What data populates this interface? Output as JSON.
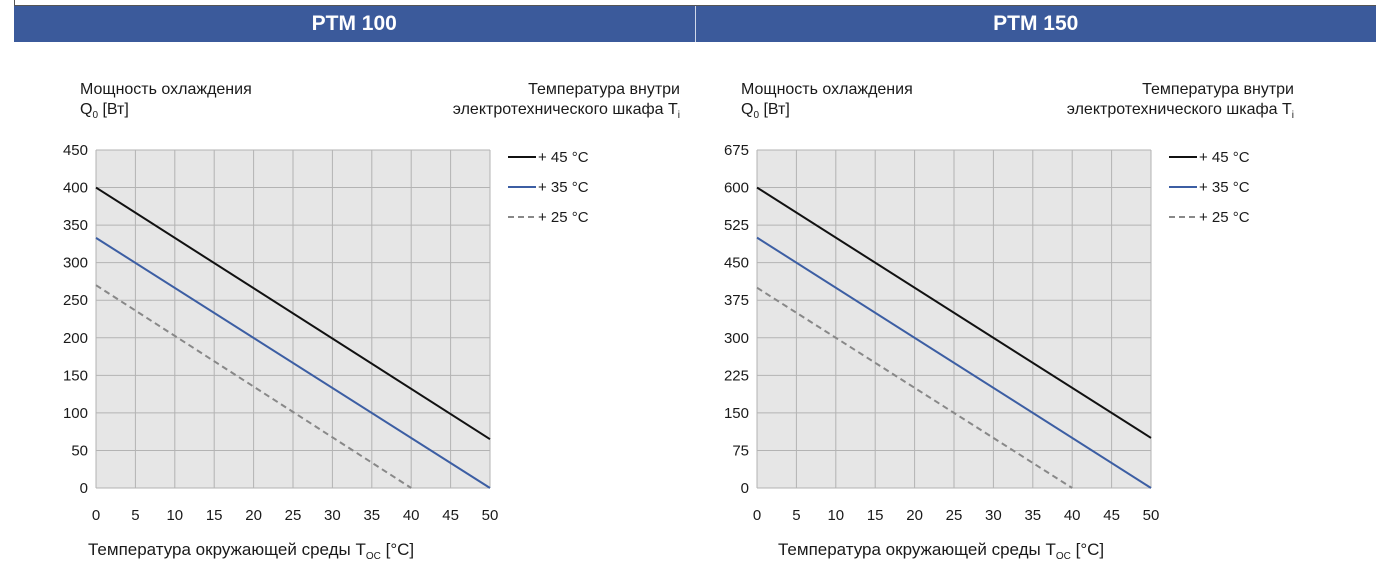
{
  "headers": [
    "PTM 100",
    "PTM 150"
  ],
  "ylabel": {
    "line1": "Мощность охлаждения",
    "q": "Q",
    "q_sub": "0",
    "unit": " [Вт]"
  },
  "tilabel": {
    "line1": "Температура внутри",
    "line2": "электротехнического шкафа T",
    "sub": "i"
  },
  "xlabel": {
    "main": "Температура окружающей среды T",
    "sub": "OC",
    "unit": " [°C]"
  },
  "colors": {
    "header": "#3b5a9b",
    "s45": "#111111",
    "s35": "#3c5ea3",
    "s25": "#888888",
    "plot_bg": "#e6e6e6",
    "grid": "#b3b3b3"
  },
  "chart_data": [
    {
      "type": "line",
      "title": "PTM 100",
      "xlabel": "Температура окружающей среды TOC [°C]",
      "ylabel": "Мощность охлаждения Q0 [Вт]",
      "xlim": [
        0,
        50
      ],
      "ylim": [
        0,
        450
      ],
      "xticks": [
        0,
        5,
        10,
        15,
        20,
        25,
        30,
        35,
        40,
        45,
        50
      ],
      "yticks": [
        0,
        50,
        100,
        150,
        200,
        250,
        300,
        350,
        400,
        450
      ],
      "grid": true,
      "legend_position": "top-right",
      "legend_title": "Температура внутри электротехнического шкафа Ti",
      "series": [
        {
          "name": "+ 45 °C",
          "style": "solid",
          "color": "#111111",
          "x": [
            0,
            50
          ],
          "y": [
            400,
            65
          ]
        },
        {
          "name": "+ 35 °C",
          "style": "solid",
          "color": "#3c5ea3",
          "x": [
            0,
            50
          ],
          "y": [
            333,
            0
          ]
        },
        {
          "name": "+ 25 °C",
          "style": "dashed",
          "color": "#888888",
          "x": [
            0,
            40
          ],
          "y": [
            270,
            0
          ]
        }
      ]
    },
    {
      "type": "line",
      "title": "PTM 150",
      "xlabel": "Температура окружающей среды TOC [°C]",
      "ylabel": "Мощность охлаждения Q0 [Вт]",
      "xlim": [
        0,
        50
      ],
      "ylim": [
        0,
        675
      ],
      "xticks": [
        0,
        5,
        10,
        15,
        20,
        25,
        30,
        35,
        40,
        45,
        50
      ],
      "yticks": [
        0,
        75,
        150,
        225,
        300,
        375,
        450,
        525,
        600,
        675
      ],
      "grid": true,
      "legend_position": "top-right",
      "legend_title": "Температура внутри электротехнического шкафа Ti",
      "series": [
        {
          "name": "+ 45 °C",
          "style": "solid",
          "color": "#111111",
          "x": [
            0,
            50
          ],
          "y": [
            600,
            100
          ]
        },
        {
          "name": "+ 35 °C",
          "style": "solid",
          "color": "#3c5ea3",
          "x": [
            0,
            50
          ],
          "y": [
            500,
            0
          ]
        },
        {
          "name": "+ 25 °C",
          "style": "dashed",
          "color": "#888888",
          "x": [
            0,
            40
          ],
          "y": [
            400,
            0
          ]
        }
      ]
    }
  ]
}
